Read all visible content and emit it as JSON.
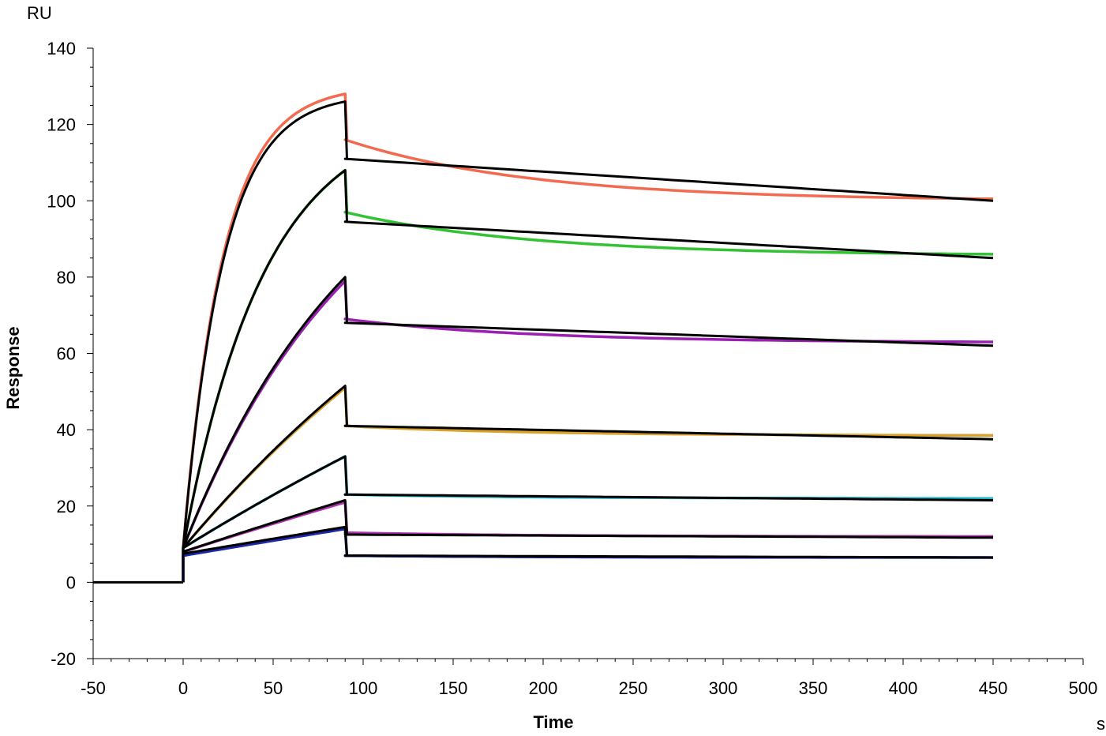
{
  "chart_data": {
    "type": "line",
    "xlabel": "Time",
    "ylabel": "Response",
    "x_unit": "s",
    "y_unit": "RU",
    "xlim": [
      -50,
      500
    ],
    "ylim": [
      -20,
      140
    ],
    "x_ticks": [
      -50,
      0,
      50,
      100,
      150,
      200,
      250,
      300,
      350,
      400,
      450,
      500
    ],
    "y_ticks": [
      -20,
      0,
      20,
      40,
      60,
      80,
      100,
      120,
      140
    ],
    "grid": false,
    "baseline": {
      "x_start": -50,
      "x_end": 0,
      "value": 0
    },
    "association_end": 90,
    "dissociation_end": 450,
    "series": [
      {
        "color": "#f26b50",
        "data": {
          "start": 9,
          "peak": 128,
          "diss_start": 116,
          "end": 100.5
        },
        "fit": {
          "start": 9,
          "peak": 126,
          "diss_start": 111,
          "end": 100
        }
      },
      {
        "color": "#33c233",
        "data": {
          "start": 9,
          "peak": 108,
          "diss_start": 97,
          "end": 86
        },
        "fit": {
          "start": 9,
          "peak": 108,
          "diss_start": 94.5,
          "end": 85
        }
      },
      {
        "color": "#9b1fb3",
        "data": {
          "start": 9,
          "peak": 79,
          "diss_start": 69,
          "end": 63
        },
        "fit": {
          "start": 9,
          "peak": 80,
          "diss_start": 68,
          "end": 62
        }
      },
      {
        "color": "#d9a12a",
        "data": {
          "start": 9,
          "peak": 51,
          "diss_start": 41,
          "end": 38.5
        },
        "fit": {
          "start": 9,
          "peak": 51.5,
          "diss_start": 41,
          "end": 37.5
        }
      },
      {
        "color": "#2bbcd0",
        "data": {
          "start": 9,
          "peak": 33,
          "diss_start": 23,
          "end": 22
        },
        "fit": {
          "start": 9,
          "peak": 33,
          "diss_start": 23,
          "end": 21.5
        }
      },
      {
        "color": "#b030b0",
        "data": {
          "start": 8,
          "peak": 21,
          "diss_start": 13,
          "end": 12
        },
        "fit": {
          "start": 8,
          "peak": 21.5,
          "diss_start": 12.5,
          "end": 11.7
        }
      },
      {
        "color": "#1a2aa8",
        "data": {
          "start": 7,
          "peak": 14,
          "diss_start": 7,
          "end": 6.5
        },
        "fit": {
          "start": 7.5,
          "peak": 14.5,
          "diss_start": 7,
          "end": 6.5
        }
      }
    ]
  }
}
